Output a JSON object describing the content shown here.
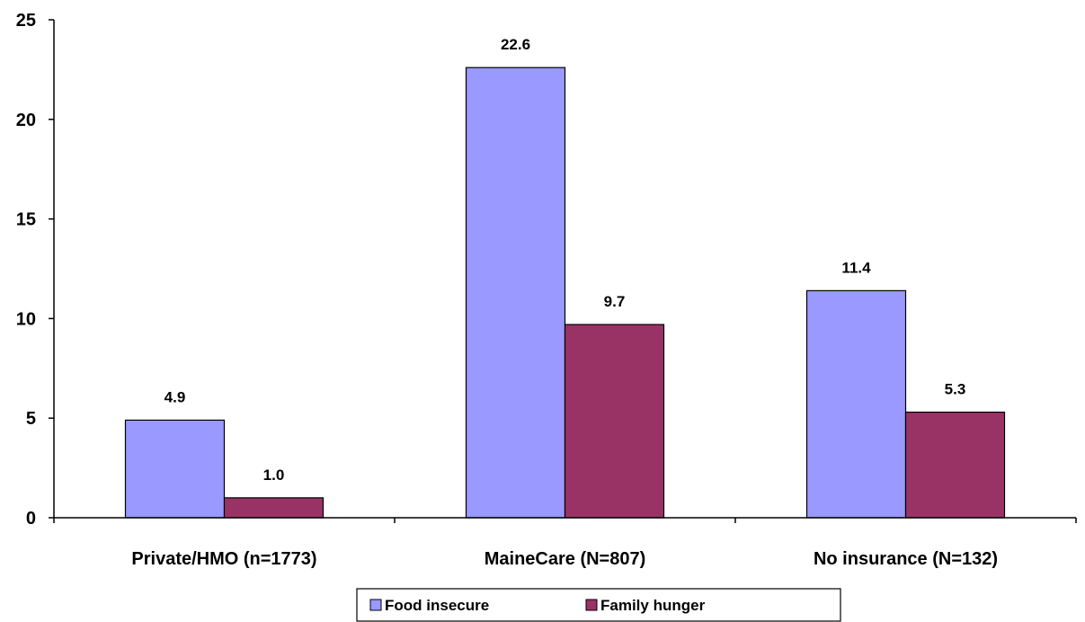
{
  "chart_data": {
    "type": "bar",
    "categories": [
      "Private/HMO (n=1773)",
      "MaineCare (N=807)",
      "No insurance (N=132)"
    ],
    "series": [
      {
        "name": "Food insecure",
        "values": [
          4.9,
          22.6,
          11.4
        ],
        "labels": [
          "4.9",
          "22.6",
          "11.4"
        ],
        "color": "#9999ff"
      },
      {
        "name": "Family hunger",
        "values": [
          1.0,
          9.7,
          5.3
        ],
        "labels": [
          "1.0",
          "9.7",
          "5.3"
        ],
        "color": "#993366"
      }
    ],
    "yticks": [
      "0",
      "5",
      "10",
      "15",
      "20",
      "25"
    ],
    "ylim": [
      0,
      25
    ],
    "title": "",
    "xlabel": "",
    "ylabel": "",
    "grid": false,
    "legend": "bottom"
  }
}
